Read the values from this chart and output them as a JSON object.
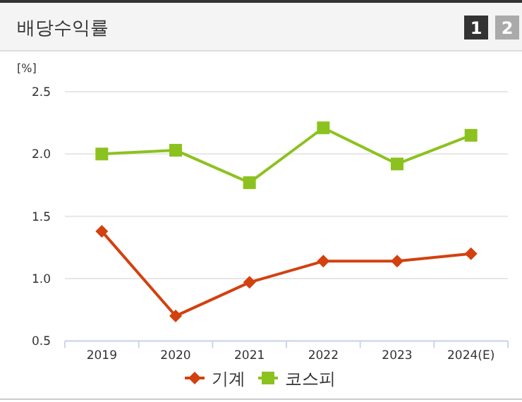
{
  "chart_data": {
    "type": "line",
    "title": "배당수익률",
    "ylabel": "[%]",
    "annotations": [
      "1",
      "2"
    ],
    "categories": [
      "2019",
      "2020",
      "2021",
      "2022",
      "2023",
      "2024(E)"
    ],
    "series": [
      {
        "name": "기계",
        "color": "#d2410f",
        "marker": "diamond",
        "values": [
          1.38,
          0.7,
          0.97,
          1.14,
          1.14,
          1.2
        ]
      },
      {
        "name": "코스피",
        "color": "#8cc21f",
        "marker": "square",
        "values": [
          2.0,
          2.03,
          1.77,
          2.21,
          1.92,
          2.15
        ]
      }
    ],
    "ylim": [
      0.5,
      2.5
    ],
    "yticks": [
      0.5,
      {
        "value": 1,
        "label": "1.0"
      },
      1.5,
      {
        "value": 2,
        "label": "2.0"
      },
      2.5
    ],
    "grid": "y",
    "legend": "bottom",
    "line_style": "solid"
  }
}
